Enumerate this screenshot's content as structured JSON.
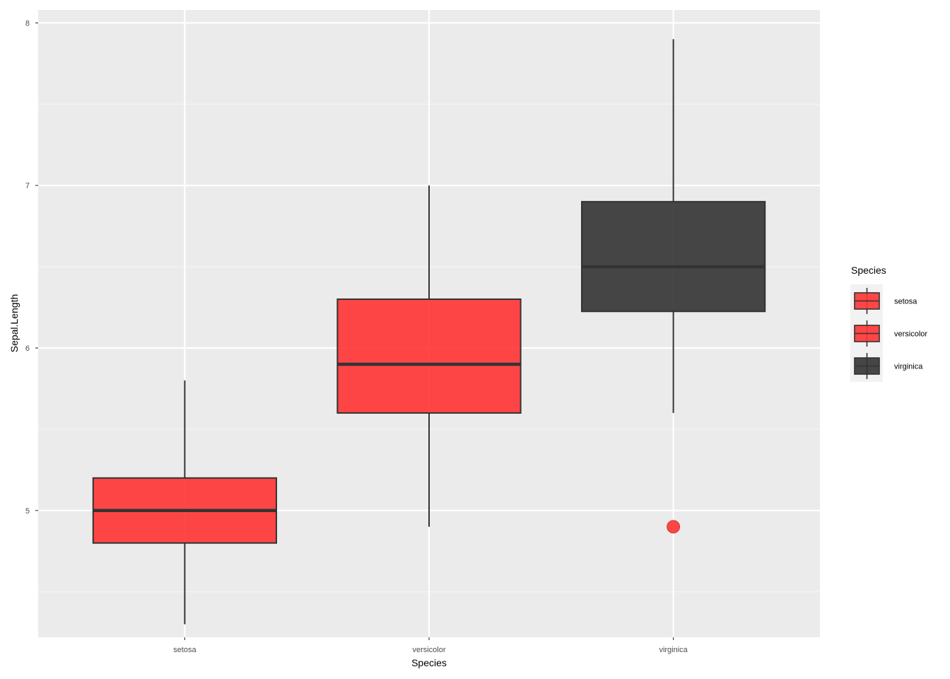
{
  "colors": {
    "panel_bg": "#ebebeb",
    "grid_major": "#ffffff",
    "grid_minor": "#f5f5f5",
    "box_red": "#ff3333",
    "box_dark": "#333333",
    "line": "#333333",
    "outlier": "#ff3333"
  },
  "chart_data": {
    "type": "boxplot",
    "title": "",
    "xlabel": "Species",
    "ylabel": "Sepal.Length",
    "categories": [
      "setosa",
      "versicolor",
      "virginica"
    ],
    "ylim": [
      4.22,
      8.08
    ],
    "yticks": [
      5,
      6,
      7,
      8
    ],
    "ytick_labels": [
      "5",
      "6",
      "7",
      "8"
    ],
    "grid": true,
    "boxes": [
      {
        "category": "setosa",
        "lower_whisker": 4.3,
        "q1": 4.8,
        "median": 5.0,
        "q3": 5.2,
        "upper_whisker": 5.8,
        "outliers": [],
        "fill": "#ff3333",
        "fill_opacity": 0.9
      },
      {
        "category": "versicolor",
        "lower_whisker": 4.9,
        "q1": 5.6,
        "median": 5.9,
        "q3": 6.3,
        "upper_whisker": 7.0,
        "outliers": [],
        "fill": "#ff3333",
        "fill_opacity": 0.9
      },
      {
        "category": "virginica",
        "lower_whisker": 5.6,
        "q1": 6.225,
        "median": 6.5,
        "q3": 6.9,
        "upper_whisker": 7.9,
        "outliers": [
          4.9
        ],
        "fill": "#333333",
        "fill_opacity": 0.9
      }
    ],
    "legend": {
      "title": "Species",
      "placement": "right",
      "entries": [
        {
          "label": "setosa",
          "fill": "#ff3333"
        },
        {
          "label": "versicolor",
          "fill": "#ff3333"
        },
        {
          "label": "virginica",
          "fill": "#333333"
        }
      ]
    }
  }
}
